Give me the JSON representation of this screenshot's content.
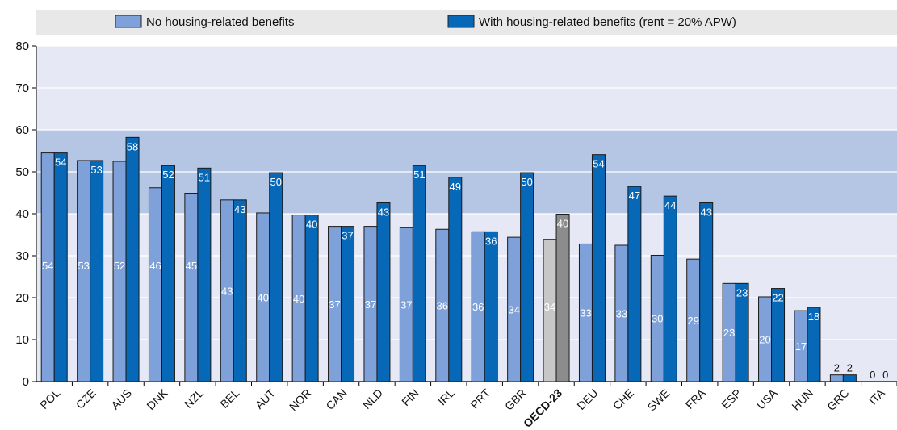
{
  "chart_data": {
    "type": "bar",
    "ylim": [
      0,
      80
    ],
    "yticks": [
      0,
      10,
      20,
      30,
      40,
      50,
      60,
      70,
      80
    ],
    "categories": [
      "POL",
      "CZE",
      "AUS",
      "DNK",
      "NZL",
      "BEL",
      "AUT",
      "NOR",
      "CAN",
      "NLD",
      "FIN",
      "IRL",
      "PRT",
      "GBR",
      "OECD-23",
      "DEU",
      "CHE",
      "SWE",
      "FRA",
      "ESP",
      "USA",
      "HUN",
      "GRC",
      "ITA"
    ],
    "highlight_category": "OECD-23",
    "shaded_band": [
      40,
      60
    ],
    "series": [
      {
        "name": "No housing-related benefits",
        "color": "#7ea1d9",
        "values": [
          54.5,
          52.7,
          52.5,
          46.2,
          44.9,
          43.3,
          40.2,
          39.7,
          37.0,
          37.0,
          36.8,
          36.3,
          35.7,
          34.4,
          33.9,
          32.8,
          32.5,
          30.1,
          29.2,
          23.4,
          20.2,
          16.9,
          1.6,
          0
        ],
        "labels": [
          "54",
          "53",
          "52",
          "46",
          "45",
          "43",
          "40",
          "40",
          "37",
          "37",
          "37",
          "36",
          "36",
          "34",
          "34",
          "33",
          "33",
          "30",
          "29",
          "23",
          "20",
          "17",
          "2",
          "0"
        ]
      },
      {
        "name": "With housing-related benefits (rent = 20% APW)",
        "color": "#0868b8",
        "values": [
          54.5,
          52.7,
          58.2,
          51.5,
          50.9,
          43.3,
          49.8,
          39.7,
          37.0,
          42.6,
          51.5,
          48.7,
          35.7,
          49.8,
          39.9,
          54.1,
          46.5,
          44.2,
          42.6,
          23.4,
          22.2,
          17.7,
          1.6,
          0
        ],
        "labels": [
          "54",
          "53",
          "58",
          "52",
          "51",
          "43",
          "50",
          "40",
          "37",
          "43",
          "51",
          "49",
          "36",
          "50",
          "40",
          "54",
          "47",
          "44",
          "43",
          "23",
          "22",
          "18",
          "2",
          "0"
        ]
      }
    ],
    "highlight_colors": {
      "no_benefits": "#c7c7c7",
      "with_benefits": "#8c8c8c"
    },
    "background_color": "#e6e9f5",
    "band_color": "#b5c5e4",
    "legend_placement": "top"
  }
}
